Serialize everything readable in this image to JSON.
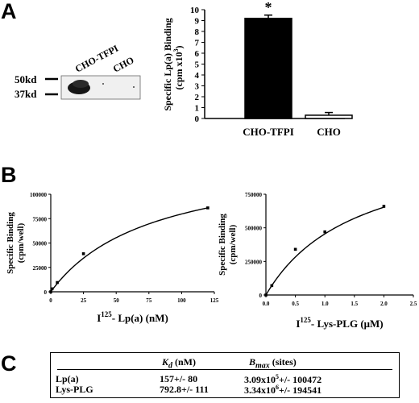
{
  "panels": {
    "a": "A",
    "b": "B",
    "c": "C"
  },
  "blot": {
    "lane_labels": [
      "CHO-TFPI",
      "CHO"
    ],
    "markers": [
      "50kd",
      "37kd"
    ]
  },
  "chart_data": [
    {
      "id": "bar",
      "type": "bar",
      "categories": [
        "CHO-TFPI",
        "CHO"
      ],
      "values": [
        9.2,
        0.3
      ],
      "errors": [
        0.3,
        0.25
      ],
      "fills": [
        "#000000",
        "#ffffff"
      ],
      "annotation": "*",
      "ylabel_lines": [
        "Specific Lp(a) Binding",
        "(cpm x10",
        "3",
        ")"
      ],
      "ylim": [
        0,
        10
      ],
      "yticks": [
        "0",
        "1",
        "2",
        "3",
        "4",
        "5",
        "6",
        "7",
        "8",
        "9",
        "10"
      ]
    },
    {
      "id": "lpa",
      "type": "line",
      "points": [
        [
          0,
          0
        ],
        [
          1,
          3000
        ],
        [
          5,
          9500
        ],
        [
          25,
          39000
        ],
        [
          120,
          86000
        ]
      ],
      "fit": {
        "bmax": 142000,
        "kd": 78
      },
      "xlim": [
        0,
        125
      ],
      "ylim": [
        0,
        100000
      ],
      "xticks": [
        "0",
        "25",
        "50",
        "75",
        "100",
        "125"
      ],
      "yticks": [
        "0",
        "25000",
        "50000",
        "75000",
        "100000"
      ],
      "ylabel_lines": [
        "Specific Binding",
        "(cpm/well)"
      ],
      "xlabel": {
        "pre": "I",
        "sup": "125",
        "post": "- Lp(a) (nM)"
      }
    },
    {
      "id": "plg",
      "type": "line",
      "points": [
        [
          0,
          0
        ],
        [
          0.1,
          70000
        ],
        [
          0.5,
          340000
        ],
        [
          1.0,
          470000
        ],
        [
          2.0,
          660000
        ]
      ],
      "fit": {
        "bmax": 1160000,
        "kd": 1.55
      },
      "xlim": [
        0,
        2.5
      ],
      "ylim": [
        0,
        750000
      ],
      "xticks": [
        "0.0",
        "0.5",
        "1.0",
        "1.5",
        "2.0",
        "2.5"
      ],
      "yticks": [
        "0",
        "250000",
        "500000",
        "750000"
      ],
      "ylabel_lines": [
        "Specific Binding",
        "(cpm/well)"
      ],
      "xlabel": {
        "pre": "I",
        "sup": "125",
        "post": "- Lys-PLG (μM)"
      }
    }
  ],
  "table": {
    "headers": {
      "kd": {
        "sym": "K",
        "sub": "d",
        "unit": " (nM)"
      },
      "bmax": {
        "sym": "B",
        "sub": "max",
        "unit": " (sites)"
      }
    },
    "rows": [
      {
        "name": "Lp(a)",
        "kd": "157+/- 80",
        "bmax_pre": "3.09x10",
        "bmax_exp": "5",
        "bmax_post": "+/- 100472"
      },
      {
        "name": "Lys-PLG",
        "kd": "792.8+/- 111",
        "bmax_pre": "3.34x10",
        "bmax_exp": "6",
        "bmax_post": "+/- 194541"
      }
    ]
  }
}
